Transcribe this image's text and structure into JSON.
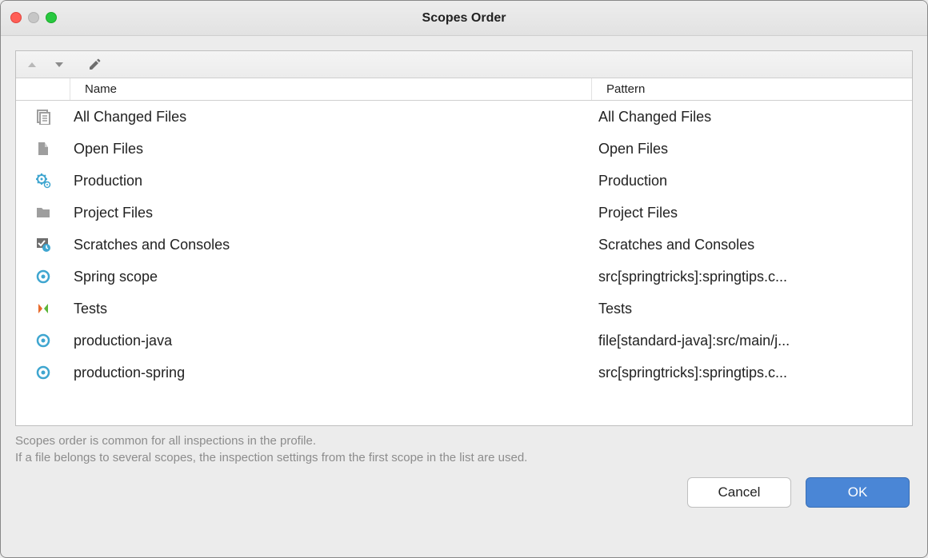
{
  "title": "Scopes Order",
  "columns": {
    "name": "Name",
    "pattern": "Pattern"
  },
  "iconColors": {
    "gray": "#9e9e9e",
    "blue": "#3fa6d0",
    "orange": "#e86a2b",
    "green": "#5cb63a",
    "darkgray": "#6e6e6e"
  },
  "rows": [
    {
      "icon": "changed-files",
      "name": "All Changed Files",
      "pattern": "All Changed Files"
    },
    {
      "icon": "open-files",
      "name": "Open Files",
      "pattern": "Open Files"
    },
    {
      "icon": "production-gear",
      "name": "Production",
      "pattern": "Production"
    },
    {
      "icon": "folder",
      "name": "Project Files",
      "pattern": "Project Files"
    },
    {
      "icon": "scratches",
      "name": "Scratches and Consoles",
      "pattern": "Scratches and Consoles"
    },
    {
      "icon": "scope-circle",
      "name": "Spring scope",
      "pattern": "src[springtricks]:springtips.c..."
    },
    {
      "icon": "tests",
      "name": "Tests",
      "pattern": "Tests"
    },
    {
      "icon": "scope-circle",
      "name": "production-java",
      "pattern": "file[standard-java]:src/main/j..."
    },
    {
      "icon": "scope-circle",
      "name": "production-spring",
      "pattern": "src[springtricks]:springtips.c..."
    }
  ],
  "hintLine1": "Scopes order is common for all inspections in the profile.",
  "hintLine2": "If a file belongs to several scopes, the inspection settings from the first scope in the list are used.",
  "buttons": {
    "cancel": "Cancel",
    "ok": "OK"
  }
}
